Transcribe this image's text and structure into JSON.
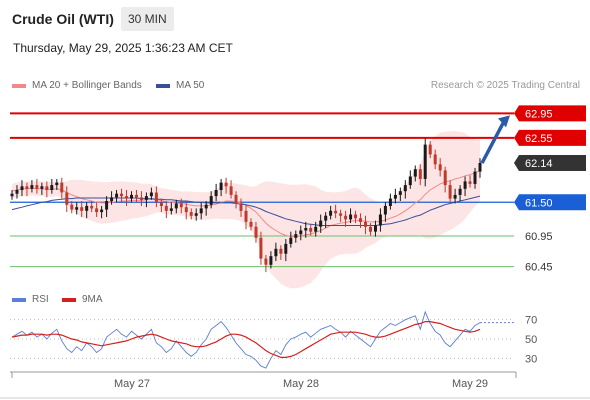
{
  "header": {
    "title": "Crude Oil (WTI)",
    "interval": "30 MIN",
    "datetime": "Thursday, May 29, 2025 1:36:23 AM CET"
  },
  "legend": {
    "ma20_label": "MA 20 + Bollinger Bands",
    "ma50_label": "MA 50",
    "rsi_label": "RSI",
    "ma9_label": "9MA",
    "credit": "Research © 2025 Trading Central"
  },
  "colors": {
    "resistance": "#e00000",
    "support_main": "#1a5fd6",
    "support": "#6abf69",
    "current": "#333333",
    "bollinger_fill": "#fde0e0",
    "ma20": "#f08a8a",
    "ma50": "#3a4f9c",
    "candle_up": "#1a1a1a",
    "candle_down": "#c0392b",
    "rsi": "#5b7fd6",
    "ma9": "#d42020",
    "arrow": "#2a5aa8"
  },
  "chart_data": [
    {
      "type": "candlestick",
      "title": "Crude Oil (WTI)",
      "ylim": [
        60.15,
        63.25
      ],
      "x_labels": [
        "May 27",
        "May 28",
        "May 29"
      ],
      "levels": [
        {
          "value": 62.95,
          "label": "62.95",
          "kind": "resistance"
        },
        {
          "value": 62.55,
          "label": "62.55",
          "kind": "resistance"
        },
        {
          "value": 62.14,
          "label": "62.14",
          "kind": "current"
        },
        {
          "value": 61.5,
          "label": "61.50",
          "kind": "pivot"
        },
        {
          "value": 60.95,
          "label": "60.95",
          "kind": "support"
        },
        {
          "value": 60.45,
          "label": "60.45",
          "kind": "support"
        }
      ],
      "target_arrow": {
        "from_value": 62.14,
        "to_value": 62.95
      },
      "candles_close": [
        61.64,
        61.7,
        61.76,
        61.72,
        61.78,
        61.72,
        61.76,
        61.7,
        61.78,
        61.82,
        61.66,
        61.46,
        61.38,
        61.42,
        61.36,
        61.44,
        61.4,
        61.34,
        61.38,
        61.52,
        61.58,
        61.64,
        61.6,
        61.56,
        61.62,
        61.58,
        61.54,
        61.6,
        61.66,
        61.5,
        61.44,
        61.36,
        61.4,
        61.48,
        61.42,
        61.34,
        61.28,
        61.32,
        61.4,
        61.46,
        61.6,
        61.7,
        61.82,
        61.76,
        61.62,
        61.48,
        61.36,
        61.18,
        61.1,
        60.92,
        60.58,
        60.48,
        60.62,
        60.74,
        60.66,
        60.82,
        60.92,
        60.98,
        61.04,
        61.08,
        61.02,
        61.1,
        61.2,
        61.28,
        61.36,
        61.32,
        61.28,
        61.22,
        61.3,
        61.24,
        61.18,
        61.1,
        61.02,
        61.12,
        61.3,
        61.44,
        61.56,
        61.62,
        61.68,
        61.78,
        61.92,
        62.04,
        61.88,
        62.44,
        62.28,
        62.12,
        62.02,
        61.78,
        61.56,
        61.62,
        61.72,
        61.84,
        61.8,
        62.0,
        62.14
      ],
      "ma20": [
        61.68,
        61.7,
        61.72,
        61.72,
        61.73,
        61.72,
        61.72,
        61.71,
        61.71,
        61.72,
        61.7,
        61.66,
        61.62,
        61.59,
        61.56,
        61.54,
        61.52,
        61.5,
        61.49,
        61.49,
        61.5,
        61.51,
        61.52,
        61.52,
        61.53,
        61.53,
        61.53,
        61.54,
        61.55,
        61.54,
        61.53,
        61.51,
        61.5,
        61.49,
        61.48,
        61.47,
        61.45,
        61.44,
        61.44,
        61.44,
        61.45,
        61.47,
        61.5,
        61.52,
        61.52,
        61.51,
        61.49,
        61.45,
        61.4,
        61.34,
        61.25,
        61.16,
        61.09,
        61.04,
        60.99,
        60.96,
        60.94,
        60.94,
        60.95,
        60.97,
        60.98,
        61.01,
        61.04,
        61.08,
        61.12,
        61.14,
        61.16,
        61.17,
        61.19,
        61.2,
        61.2,
        61.19,
        61.18,
        61.18,
        61.19,
        61.21,
        61.24,
        61.27,
        61.31,
        61.36,
        61.42,
        61.49,
        61.54,
        61.63,
        61.7,
        61.75,
        61.8,
        61.83,
        61.85,
        61.88,
        61.9,
        61.93,
        61.95,
        61.98,
        62.02
      ],
      "ma50": [
        61.38,
        61.4,
        61.42,
        61.44,
        61.46,
        61.48,
        61.5,
        61.51,
        61.53,
        61.54,
        61.55,
        61.56,
        61.56,
        61.57,
        61.57,
        61.57,
        61.57,
        61.57,
        61.57,
        61.57,
        61.57,
        61.57,
        61.57,
        61.57,
        61.57,
        61.57,
        61.56,
        61.56,
        61.56,
        61.55,
        61.55,
        61.54,
        61.54,
        61.53,
        61.52,
        61.52,
        61.51,
        61.5,
        61.5,
        61.49,
        61.49,
        61.49,
        61.49,
        61.49,
        61.49,
        61.48,
        61.47,
        61.46,
        61.44,
        61.42,
        61.39,
        61.35,
        61.32,
        61.29,
        61.26,
        61.23,
        61.21,
        61.19,
        61.17,
        61.15,
        61.14,
        61.13,
        61.12,
        61.12,
        61.12,
        61.12,
        61.12,
        61.12,
        61.12,
        61.12,
        61.12,
        61.12,
        61.12,
        61.12,
        61.13,
        61.14,
        61.15,
        61.17,
        61.19,
        61.21,
        61.24,
        61.27,
        61.29,
        61.33,
        61.37,
        61.4,
        61.43,
        61.46,
        61.48,
        61.5,
        61.52,
        61.54,
        61.56,
        61.58,
        61.6
      ]
    },
    {
      "type": "line",
      "title": "RSI",
      "ylim": [
        20,
        80
      ],
      "y_ticks": [
        70,
        50,
        30
      ],
      "series": [
        {
          "name": "RSI",
          "values": [
            52,
            55,
            58,
            54,
            57,
            52,
            55,
            50,
            56,
            60,
            48,
            40,
            36,
            42,
            38,
            46,
            42,
            36,
            40,
            52,
            56,
            60,
            55,
            52,
            58,
            54,
            50,
            55,
            60,
            46,
            42,
            36,
            40,
            48,
            42,
            36,
            32,
            36,
            44,
            50,
            60,
            64,
            68,
            62,
            54,
            46,
            40,
            34,
            32,
            28,
            22,
            20,
            30,
            38,
            34,
            44,
            50,
            52,
            55,
            57,
            52,
            56,
            60,
            62,
            64,
            60,
            57,
            52,
            58,
            54,
            50,
            46,
            42,
            50,
            58,
            62,
            66,
            64,
            67,
            70,
            72,
            74,
            60,
            78,
            66,
            58,
            54,
            46,
            42,
            48,
            54,
            60,
            58,
            64,
            67
          ]
        },
        {
          "name": "9MA",
          "values": [
            52,
            53,
            54,
            54,
            55,
            55,
            55,
            54,
            55,
            55,
            54,
            52,
            50,
            49,
            47,
            46,
            45,
            44,
            43,
            44,
            45,
            46,
            47,
            48,
            50,
            52,
            53,
            54,
            55,
            54,
            52,
            50,
            48,
            47,
            46,
            45,
            43,
            42,
            42,
            43,
            45,
            47,
            50,
            53,
            55,
            55,
            54,
            52,
            49,
            46,
            42,
            38,
            35,
            33,
            31,
            31,
            32,
            34,
            37,
            40,
            43,
            46,
            49,
            52,
            55,
            56,
            57,
            57,
            57,
            57,
            56,
            55,
            53,
            52,
            52,
            53,
            55,
            57,
            59,
            61,
            63,
            65,
            66,
            68,
            68,
            67,
            66,
            64,
            62,
            60,
            59,
            58,
            57,
            58,
            60
          ]
        }
      ]
    }
  ]
}
